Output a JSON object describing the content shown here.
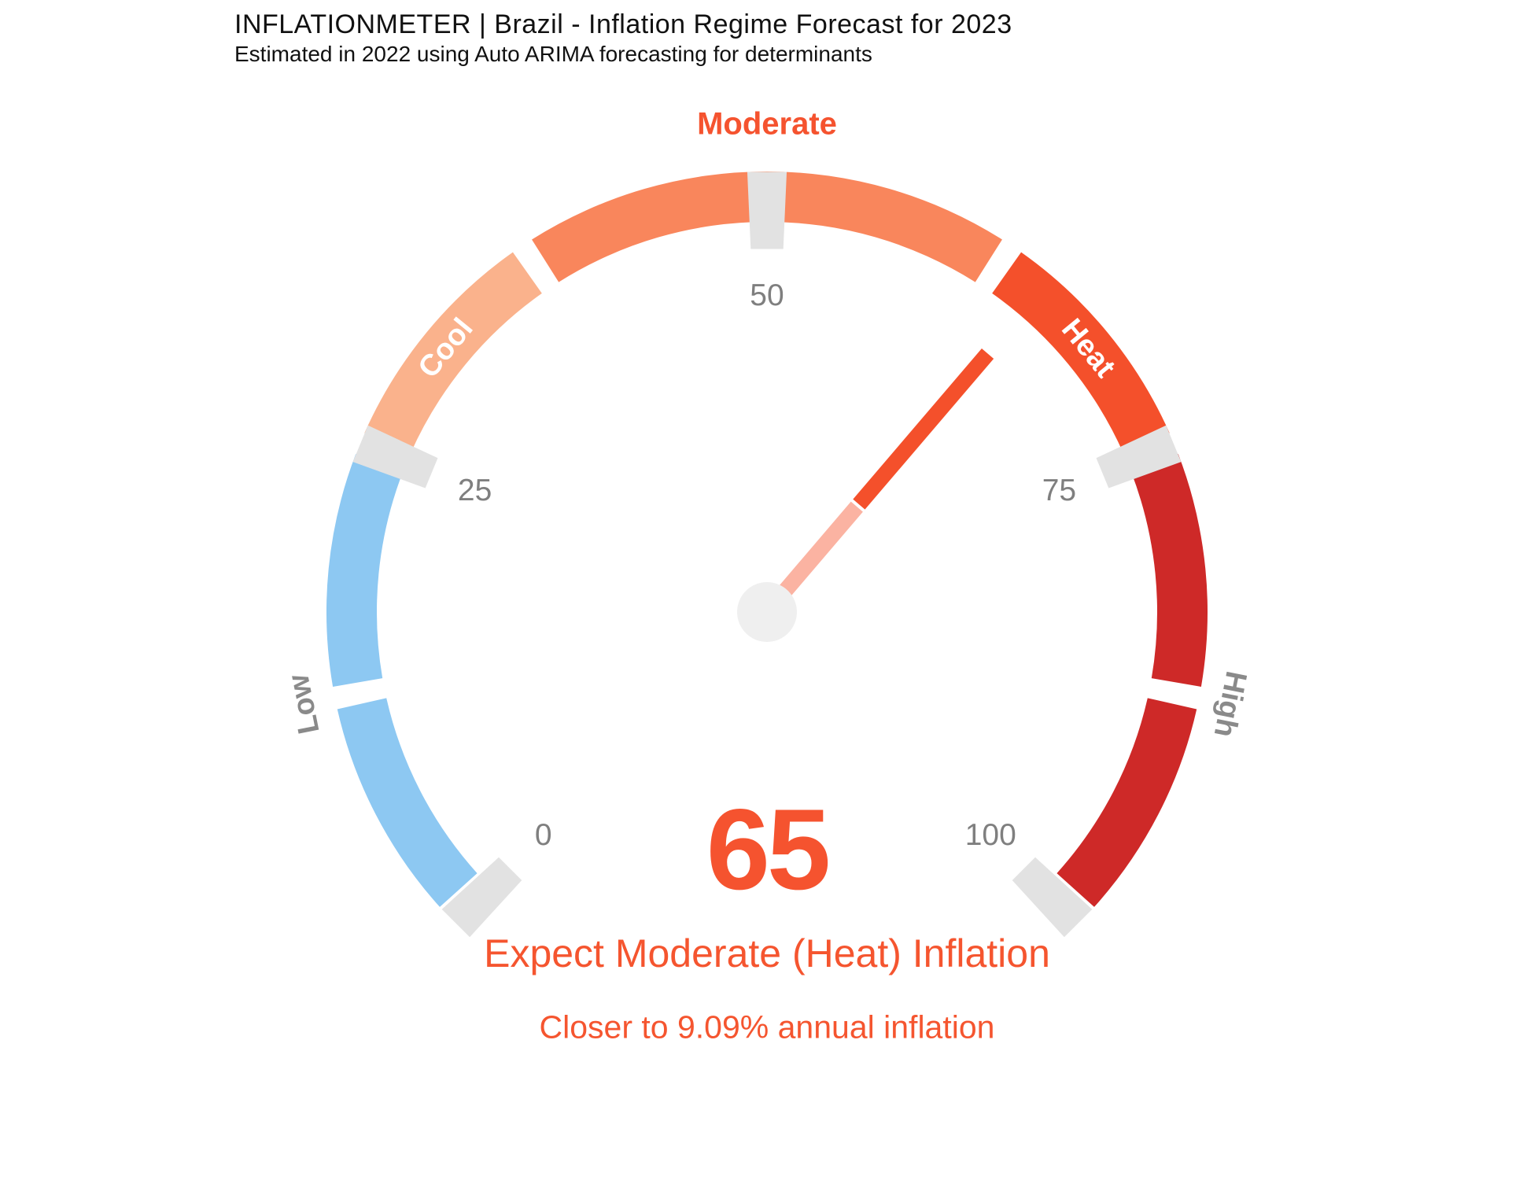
{
  "header": {
    "title": "INFLATIONMETER | Brazil - Inflation Regime Forecast for 2023",
    "subtitle": "Estimated in 2022 using Auto ARIMA forecasting for determinants"
  },
  "colors": {
    "accent": "#F5532F",
    "annotation_text": "#F5552F",
    "tick_text": "#7f7f7f",
    "region_text_gray": "#8a8a8a",
    "tick_block": "#e2e2e2",
    "hub": "#efefef",
    "title_text": "#111111"
  },
  "chart_data": {
    "type": "gauge",
    "title": "INFLATIONMETER | Brazil - Inflation Regime Forecast for 2023",
    "subtitle": "Estimated in 2022 using Auto ARIMA forecasting for determinants",
    "min": 0,
    "max": 100,
    "value": 65,
    "value_label": "65",
    "start_angle_deg": 225,
    "end_angle_deg": -45,
    "segments": [
      {
        "from": 0,
        "to": 12.5,
        "color": "#8DC8F2",
        "regime": "Low"
      },
      {
        "from": 12.5,
        "to": 25,
        "color": "#8DC8F2",
        "regime": "Low"
      },
      {
        "from": 25,
        "to": 37.5,
        "color": "#FAB28C",
        "regime": "Cool"
      },
      {
        "from": 37.5,
        "to": 62.5,
        "color": "#F9865C",
        "regime": "Moderate"
      },
      {
        "from": 62.5,
        "to": 75,
        "color": "#F4502B",
        "regime": "Heat"
      },
      {
        "from": 75,
        "to": 87.5,
        "color": "#CE2928",
        "regime": "High"
      },
      {
        "from": 87.5,
        "to": 100,
        "color": "#CE2928",
        "regime": "High"
      }
    ],
    "ticks": [
      {
        "value": 0,
        "label": "0"
      },
      {
        "value": 25,
        "label": "25"
      },
      {
        "value": 50,
        "label": "50"
      },
      {
        "value": 75,
        "label": "75"
      },
      {
        "value": 100,
        "label": "100"
      }
    ],
    "region_labels": [
      {
        "text": "Low",
        "at": 12.5,
        "radius": 600,
        "rotated": true,
        "color": "#8a8a8a"
      },
      {
        "text": "Cool",
        "at": 31.25,
        "radius": 528,
        "rotated": true,
        "color": "#ffffff"
      },
      {
        "text": "Moderate",
        "at": 50,
        "radius": 620,
        "rotated": false,
        "color": "#F5532F"
      },
      {
        "text": "Heat",
        "at": 68.75,
        "radius": 528,
        "rotated": true,
        "color": "#ffffff"
      },
      {
        "text": "High",
        "at": 87.5,
        "radius": 600,
        "rotated": true,
        "color": "#8a8a8a"
      }
    ],
    "needle": {
      "value": 65,
      "base_color": "#FBB3A2",
      "tip_color": "#F4502B",
      "base_start_radius": 30,
      "split_radius": 178,
      "tip_radius": 432,
      "half_width": 10
    },
    "annotations": [
      "Expect Moderate (Heat) Inflation",
      "Closer to 9.09% annual inflation"
    ],
    "legend_position": "none",
    "grid": false
  }
}
